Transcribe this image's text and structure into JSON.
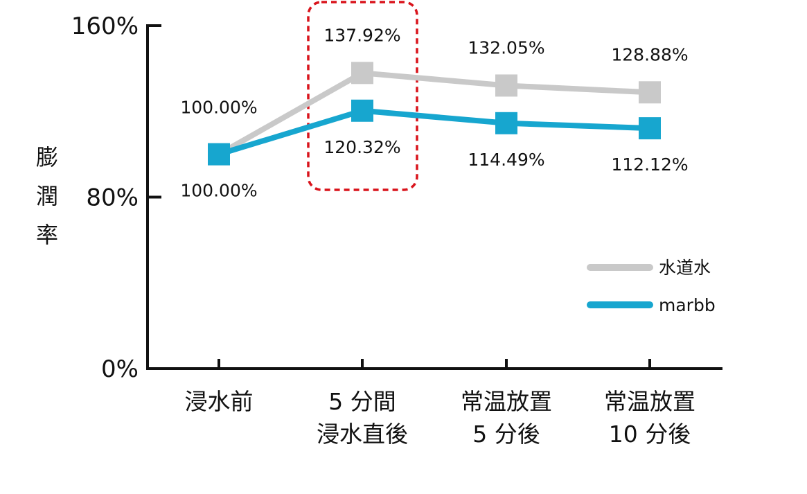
{
  "chart_data": {
    "type": "line",
    "categories": [
      [
        "浸水前"
      ],
      [
        "5 分間",
        "浸水直後"
      ],
      [
        "常温放置",
        "5 分後"
      ],
      [
        "常温放置",
        "10 分後"
      ]
    ],
    "ylabel": "膨潤率",
    "ylim": [
      0,
      160
    ],
    "yticks": [
      {
        "value": 0,
        "label": "0%"
      },
      {
        "value": 80,
        "label": "80%"
      },
      {
        "value": 160,
        "label": "160%"
      }
    ],
    "grid": false,
    "legend_position": "bottom-right",
    "series": [
      {
        "name": "水道水",
        "color": "#c9c9c9",
        "values": [
          100.0,
          137.92,
          132.05,
          128.88
        ],
        "labels": [
          "100.00%",
          "137.92%",
          "132.05%",
          "128.88%"
        ],
        "label_side": "above"
      },
      {
        "name": "marbb",
        "color": "#17a6cf",
        "values": [
          100.0,
          120.32,
          114.49,
          112.12
        ],
        "labels": [
          "100.00%",
          "120.32%",
          "114.49%",
          "112.12%"
        ],
        "label_side": "below"
      }
    ],
    "highlight": {
      "category_index": 1,
      "style": "dashed-box",
      "color": "#d9141c"
    }
  }
}
